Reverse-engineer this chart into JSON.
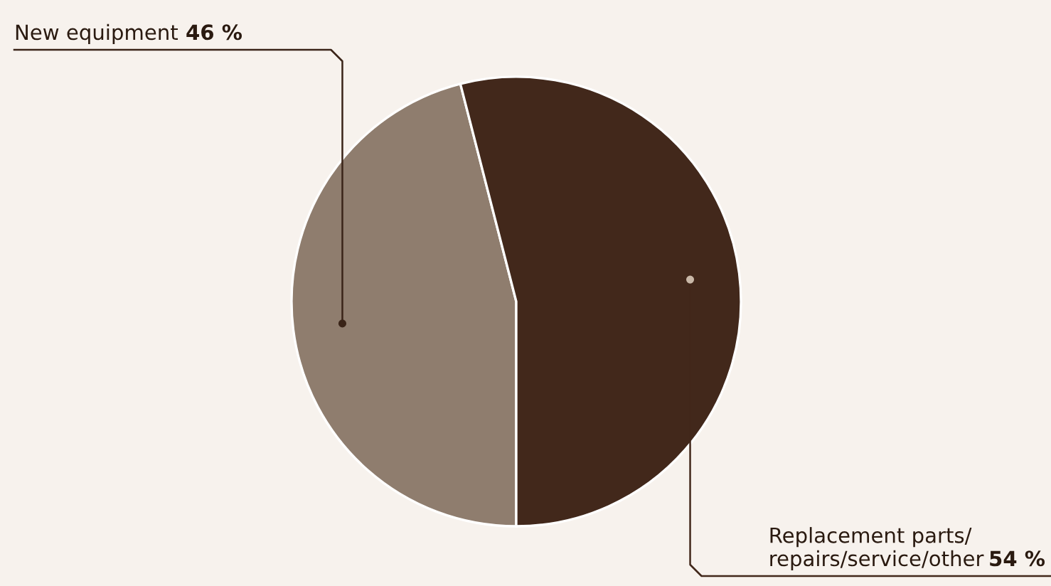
{
  "chart_data": {
    "type": "pie",
    "categories": [
      "New equipment",
      "Replacement parts/\nrepairs/service/other"
    ],
    "values": [
      46,
      54
    ],
    "value_labels": [
      "46 %",
      "54 %"
    ],
    "colors": [
      "#8f7d6e",
      "#42281b"
    ]
  }
}
